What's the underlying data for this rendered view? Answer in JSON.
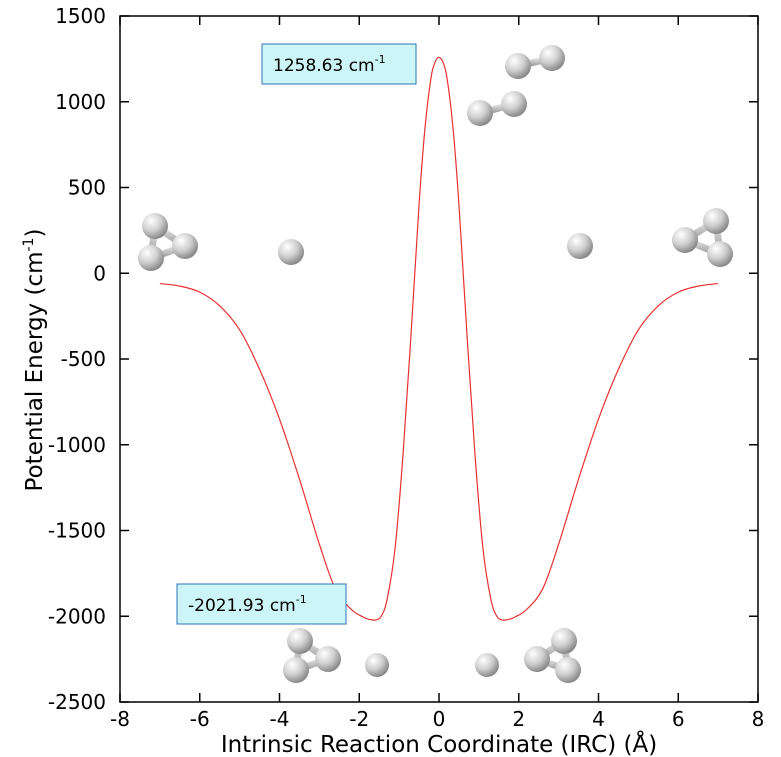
{
  "chart_data": {
    "type": "line",
    "xlabel": "Intrinsic Reaction Coordinate (IRC) (Å)",
    "ylabel": "Potential Energy (cm",
    "ylabel_sup": "-1",
    "ylabel_close": ")",
    "xlim": [
      -8,
      8
    ],
    "ylim": [
      -2500,
      1500
    ],
    "x_ticks": [
      -8,
      -6,
      -4,
      -2,
      0,
      2,
      4,
      6,
      8
    ],
    "y_ticks": [
      -2500,
      -2000,
      -1500,
      -1000,
      -500,
      0,
      500,
      1000,
      1500
    ],
    "grid": false,
    "line_color": "#e8312f",
    "annotations": [
      {
        "text": "1258.63 cm",
        "sup": "-1",
        "x": 0,
        "y": 1258.63
      },
      {
        "text": "-2021.93 cm",
        "sup": "-1",
        "x": -1.6,
        "y": -2021.93
      }
    ],
    "series": [
      {
        "x": [
          -7.0,
          -6.5,
          -6.0,
          -5.5,
          -5.0,
          -4.5,
          -4.0,
          -3.5,
          -3.0,
          -2.6,
          -2.2,
          -1.9,
          -1.75,
          -1.6,
          -1.45,
          -1.3,
          -1.1,
          -0.9,
          -0.7,
          -0.5,
          -0.35,
          -0.2,
          -0.1,
          0.0,
          0.1,
          0.2,
          0.35,
          0.5,
          0.7,
          0.9,
          1.1,
          1.3,
          1.45,
          1.6,
          1.75,
          1.9,
          2.2,
          2.6,
          3.0,
          3.5,
          4.0,
          4.5,
          5.0,
          5.5,
          6.0,
          6.5,
          7.0
        ],
        "y": [
          -60,
          -75,
          -110,
          -190,
          -330,
          -560,
          -850,
          -1200,
          -1580,
          -1840,
          -1960,
          -2005,
          -2018,
          -2021.93,
          -2000,
          -1900,
          -1600,
          -1050,
          -350,
          400,
          850,
          1140,
          1230,
          1258.63,
          1230,
          1140,
          850,
          400,
          -350,
          -1050,
          -1600,
          -1900,
          -2000,
          -2021.93,
          -2018,
          -2005,
          -1960,
          -1840,
          -1580,
          -1200,
          -850,
          -560,
          -330,
          -190,
          -110,
          -75,
          -60
        ]
      }
    ],
    "molecule_color": "#c8c8c8"
  }
}
